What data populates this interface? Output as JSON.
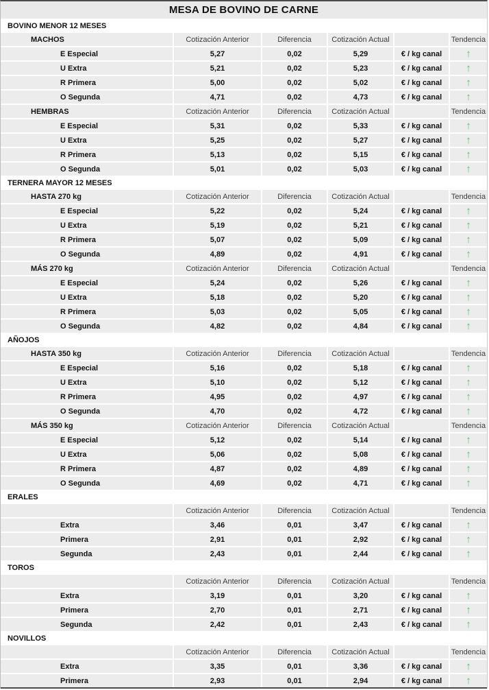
{
  "title": "MESA DE BOVINO DE CARNE",
  "columns": {
    "prev": "Cotización Anterior",
    "diff": "Diferencia",
    "curr": "Cotización Actual",
    "trend": "Tendencia"
  },
  "unit_label": "€ / kg canal",
  "trend": {
    "up_symbol": "↑"
  },
  "colors": {
    "trend_up": "#4cc768",
    "row_bg": "#ececec",
    "title_bg": "#e9e9e9",
    "header_text": "#3c3c3c",
    "top_border": "#4a4a4a"
  },
  "sections": [
    {
      "name": "BOVINO MENOR 12 MESES",
      "groups": [
        {
          "name": "MACHOS",
          "rows": [
            {
              "label": "E Especial",
              "prev": "5,27",
              "diff": "0,02",
              "curr": "5,29",
              "trend": "up"
            },
            {
              "label": "U Extra",
              "prev": "5,21",
              "diff": "0,02",
              "curr": "5,23",
              "trend": "up"
            },
            {
              "label": "R Primera",
              "prev": "5,00",
              "diff": "0,02",
              "curr": "5,02",
              "trend": "up"
            },
            {
              "label": "O Segunda",
              "prev": "4,71",
              "diff": "0,02",
              "curr": "4,73",
              "trend": "up"
            }
          ]
        },
        {
          "name": "HEMBRAS",
          "rows": [
            {
              "label": "E Especial",
              "prev": "5,31",
              "diff": "0,02",
              "curr": "5,33",
              "trend": "up"
            },
            {
              "label": "U Extra",
              "prev": "5,25",
              "diff": "0,02",
              "curr": "5,27",
              "trend": "up"
            },
            {
              "label": "R Primera",
              "prev": "5,13",
              "diff": "0,02",
              "curr": "5,15",
              "trend": "up"
            },
            {
              "label": "O Segunda",
              "prev": "5,01",
              "diff": "0,02",
              "curr": "5,03",
              "trend": "up"
            }
          ]
        }
      ]
    },
    {
      "name": "TERNERA MAYOR 12 MESES",
      "groups": [
        {
          "name": "HASTA 270 kg",
          "rows": [
            {
              "label": "E Especial",
              "prev": "5,22",
              "diff": "0,02",
              "curr": "5,24",
              "trend": "up"
            },
            {
              "label": "U Extra",
              "prev": "5,19",
              "diff": "0,02",
              "curr": "5,21",
              "trend": "up"
            },
            {
              "label": "R Primera",
              "prev": "5,07",
              "diff": "0,02",
              "curr": "5,09",
              "trend": "up"
            },
            {
              "label": "O Segunda",
              "prev": "4,89",
              "diff": "0,02",
              "curr": "4,91",
              "trend": "up"
            }
          ]
        },
        {
          "name": "MÁS 270 kg",
          "rows": [
            {
              "label": "E Especial",
              "prev": "5,24",
              "diff": "0,02",
              "curr": "5,26",
              "trend": "up"
            },
            {
              "label": "U Extra",
              "prev": "5,18",
              "diff": "0,02",
              "curr": "5,20",
              "trend": "up"
            },
            {
              "label": "R Primera",
              "prev": "5,03",
              "diff": "0,02",
              "curr": "5,05",
              "trend": "up"
            },
            {
              "label": "O Segunda",
              "prev": "4,82",
              "diff": "0,02",
              "curr": "4,84",
              "trend": "up"
            }
          ]
        }
      ]
    },
    {
      "name": "AÑOJOS",
      "groups": [
        {
          "name": "HASTA 350 kg",
          "rows": [
            {
              "label": "E Especial",
              "prev": "5,16",
              "diff": "0,02",
              "curr": "5,18",
              "trend": "up"
            },
            {
              "label": "U Extra",
              "prev": "5,10",
              "diff": "0,02",
              "curr": "5,12",
              "trend": "up"
            },
            {
              "label": "R Primera",
              "prev": "4,95",
              "diff": "0,02",
              "curr": "4,97",
              "trend": "up"
            },
            {
              "label": "O Segunda",
              "prev": "4,70",
              "diff": "0,02",
              "curr": "4,72",
              "trend": "up"
            }
          ]
        },
        {
          "name": "MÁS 350 kg",
          "rows": [
            {
              "label": "E Especial",
              "prev": "5,12",
              "diff": "0,02",
              "curr": "5,14",
              "trend": "up"
            },
            {
              "label": "U Extra",
              "prev": "5,06",
              "diff": "0,02",
              "curr": "5,08",
              "trend": "up"
            },
            {
              "label": "R Primera",
              "prev": "4,87",
              "diff": "0,02",
              "curr": "4,89",
              "trend": "up"
            },
            {
              "label": "O Segunda",
              "prev": "4,69",
              "diff": "0,02",
              "curr": "4,71",
              "trend": "up"
            }
          ]
        }
      ]
    },
    {
      "name": "ERALES",
      "groups": [
        {
          "name": "",
          "rows": [
            {
              "label": "Extra",
              "prev": "3,46",
              "diff": "0,01",
              "curr": "3,47",
              "trend": "up"
            },
            {
              "label": "Primera",
              "prev": "2,91",
              "diff": "0,01",
              "curr": "2,92",
              "trend": "up"
            },
            {
              "label": "Segunda",
              "prev": "2,43",
              "diff": "0,01",
              "curr": "2,44",
              "trend": "up"
            }
          ]
        }
      ]
    },
    {
      "name": "TOROS",
      "groups": [
        {
          "name": "",
          "rows": [
            {
              "label": "Extra",
              "prev": "3,19",
              "diff": "0,01",
              "curr": "3,20",
              "trend": "up"
            },
            {
              "label": "Primera",
              "prev": "2,70",
              "diff": "0,01",
              "curr": "2,71",
              "trend": "up"
            },
            {
              "label": "Segunda",
              "prev": "2,42",
              "diff": "0,01",
              "curr": "2,43",
              "trend": "up"
            }
          ]
        }
      ]
    },
    {
      "name": "NOVILLOS",
      "groups": [
        {
          "name": "",
          "rows": [
            {
              "label": "Extra",
              "prev": "3,35",
              "diff": "0,01",
              "curr": "3,36",
              "trend": "up"
            },
            {
              "label": "Primera",
              "prev": "2,93",
              "diff": "0,01",
              "curr": "2,94",
              "trend": "up"
            }
          ]
        }
      ]
    }
  ]
}
